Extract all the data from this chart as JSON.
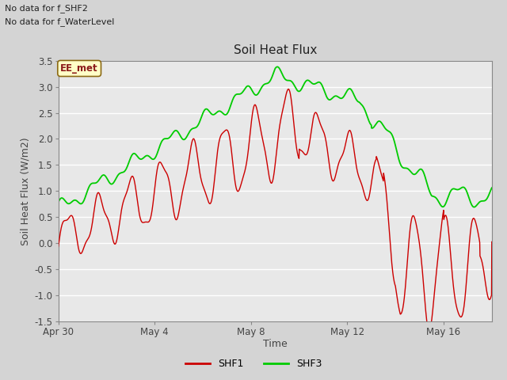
{
  "title": "Soil Heat Flux",
  "xlabel": "Time",
  "ylabel": "Soil Heat Flux (W/m2)",
  "ylim": [
    -1.5,
    3.5
  ],
  "fig_facecolor": "#d4d4d4",
  "plot_bg_color": "#e8e8e8",
  "grid_color": "#ffffff",
  "top_text_line1": "No data for f_SHF2",
  "top_text_line2": "No data for f_WaterLevel",
  "box_label": "EE_met",
  "box_facecolor": "#ffffc8",
  "box_edgecolor": "#8b6914",
  "legend_labels": [
    "SHF1",
    "SHF3"
  ],
  "shf1_color": "#cc0000",
  "shf3_color": "#00cc00",
  "xtick_labels": [
    "Apr 30",
    "May 4",
    "May 8",
    "May 12",
    "May 16"
  ],
  "xtick_positions": [
    0,
    4,
    8,
    12,
    16
  ],
  "ytick_values": [
    -1.5,
    -1.0,
    -0.5,
    0.0,
    0.5,
    1.0,
    1.5,
    2.0,
    2.5,
    3.0,
    3.5
  ],
  "xlim": [
    0,
    18
  ]
}
